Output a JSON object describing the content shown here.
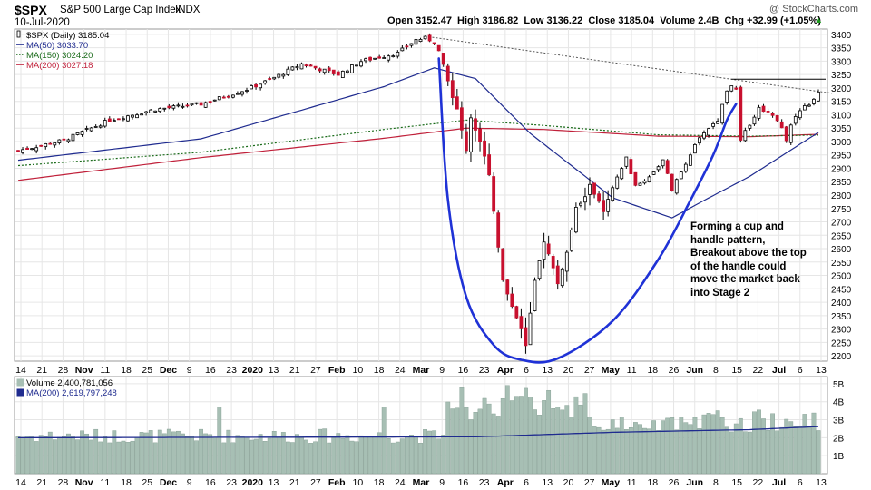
{
  "header": {
    "symbol": "$SPX",
    "name": "S&P 500 Large Cap Index",
    "exchange": "INDX",
    "date": "10-Jul-2020",
    "watermark": "@ StockCharts.com",
    "ohlc_line": "Open 3152.47  High 3186.82  Low 3136.22  Close 3185.04  Volume 2.4B  Chg +32.99 (+1.05%)",
    "chg_arrow": "▲"
  },
  "legend": [
    {
      "label": "$SPX (Daily) 3185.04",
      "color": "#000000",
      "style": "candle"
    },
    {
      "label": "MA(50) 3033.70",
      "color": "#1f2b8f",
      "style": "solid"
    },
    {
      "label": "MA(150) 3024.20",
      "color": "#1a6b1a",
      "style": "dotted"
    },
    {
      "label": "MA(200) 3027.18",
      "color": "#c0203a",
      "style": "solid"
    }
  ],
  "volume_legend": [
    {
      "label": "Volume 2,400,781,056",
      "color": "#a7bfb4"
    },
    {
      "label": "MA(200) 2,619,797,248",
      "color": "#1f2b8f"
    }
  ],
  "annotation": {
    "lines": [
      "Forming a cup and",
      "handle pattern,",
      "Breakout above the top",
      "of the handle could",
      "move the market back",
      "into Stage 2"
    ]
  },
  "colors": {
    "up": "#ffffff",
    "down": "#c8102e",
    "cup": "#1f32d6",
    "volume": "#a7bfb4",
    "grid": "#e6e6e6"
  },
  "chart_data": {
    "type": "candlestick",
    "price_axis": {
      "ylim": [
        2180,
        3420
      ],
      "ticks": [
        2200,
        2250,
        2300,
        2350,
        2400,
        2450,
        2500,
        2550,
        2600,
        2650,
        2700,
        2750,
        2800,
        2850,
        2900,
        2950,
        3000,
        3050,
        3100,
        3150,
        3200,
        3250,
        3300,
        3350,
        3400
      ]
    },
    "volume_axis": {
      "ylim": [
        0,
        5400000000
      ],
      "ticks": [
        {
          "v": 1000000000,
          "label": "1B"
        },
        {
          "v": 2000000000,
          "label": "2B"
        },
        {
          "v": 3000000000,
          "label": "3B"
        },
        {
          "v": 4000000000,
          "label": "4B"
        },
        {
          "v": 5000000000,
          "label": "5B"
        }
      ]
    },
    "x_labels": [
      {
        "label": "14",
        "bold": false
      },
      {
        "label": "21",
        "bold": false
      },
      {
        "label": "28",
        "bold": false
      },
      {
        "label": "Nov",
        "bold": true
      },
      {
        "label": "11",
        "bold": false
      },
      {
        "label": "18",
        "bold": false
      },
      {
        "label": "25",
        "bold": false
      },
      {
        "label": "Dec",
        "bold": true
      },
      {
        "label": "9",
        "bold": false
      },
      {
        "label": "16",
        "bold": false
      },
      {
        "label": "23",
        "bold": false
      },
      {
        "label": "2020",
        "bold": true
      },
      {
        "label": "13",
        "bold": false
      },
      {
        "label": "21",
        "bold": false
      },
      {
        "label": "27",
        "bold": false
      },
      {
        "label": "Feb",
        "bold": true
      },
      {
        "label": "10",
        "bold": false
      },
      {
        "label": "18",
        "bold": false
      },
      {
        "label": "24",
        "bold": false
      },
      {
        "label": "Mar",
        "bold": true
      },
      {
        "label": "9",
        "bold": false
      },
      {
        "label": "16",
        "bold": false
      },
      {
        "label": "23",
        "bold": false
      },
      {
        "label": "Apr",
        "bold": true
      },
      {
        "label": "6",
        "bold": false
      },
      {
        "label": "13",
        "bold": false
      },
      {
        "label": "20",
        "bold": false
      },
      {
        "label": "27",
        "bold": false
      },
      {
        "label": "May",
        "bold": true
      },
      {
        "label": "11",
        "bold": false
      },
      {
        "label": "18",
        "bold": false
      },
      {
        "label": "26",
        "bold": false
      },
      {
        "label": "Jun",
        "bold": true
      },
      {
        "label": "8",
        "bold": false
      },
      {
        "label": "15",
        "bold": false
      },
      {
        "label": "22",
        "bold": false
      },
      {
        "label": "Jul",
        "bold": true
      },
      {
        "label": "6",
        "bold": false
      },
      {
        "label": "13",
        "bold": false
      }
    ],
    "price_anchors": [
      {
        "d": 0,
        "c": 2966
      },
      {
        "d": 10,
        "c": 3005
      },
      {
        "d": 20,
        "c": 3080
      },
      {
        "d": 30,
        "c": 3120
      },
      {
        "d": 40,
        "c": 3140
      },
      {
        "d": 50,
        "c": 3195
      },
      {
        "d": 55,
        "c": 3230
      },
      {
        "d": 62,
        "c": 3290
      },
      {
        "d": 70,
        "c": 3250
      },
      {
        "d": 75,
        "c": 3300
      },
      {
        "d": 83,
        "c": 3330
      },
      {
        "d": 87,
        "c": 3380
      },
      {
        "d": 89,
        "c": 3386
      },
      {
        "d": 91,
        "c": 3373
      },
      {
        "d": 92,
        "c": 3337
      },
      {
        "d": 94,
        "c": 3225
      },
      {
        "d": 96,
        "c": 3116
      },
      {
        "d": 98,
        "c": 2970
      },
      {
        "d": 99,
        "c": 3090
      },
      {
        "d": 101,
        "c": 3000
      },
      {
        "d": 103,
        "c": 2882
      },
      {
        "d": 104,
        "c": 2741
      },
      {
        "d": 106,
        "c": 2480
      },
      {
        "d": 108,
        "c": 2386
      },
      {
        "d": 110,
        "c": 2305
      },
      {
        "d": 111,
        "c": 2237
      },
      {
        "d": 113,
        "c": 2475
      },
      {
        "d": 115,
        "c": 2630
      },
      {
        "d": 117,
        "c": 2526
      },
      {
        "d": 118,
        "c": 2470
      },
      {
        "d": 120,
        "c": 2585
      },
      {
        "d": 122,
        "c": 2750
      },
      {
        "d": 124,
        "c": 2790
      },
      {
        "d": 125,
        "c": 2843
      },
      {
        "d": 128,
        "c": 2736
      },
      {
        "d": 130,
        "c": 2823
      },
      {
        "d": 133,
        "c": 2939
      },
      {
        "d": 135,
        "c": 2830
      },
      {
        "d": 138,
        "c": 2870
      },
      {
        "d": 141,
        "c": 2929
      },
      {
        "d": 143,
        "c": 2820
      },
      {
        "d": 144,
        "c": 2852
      },
      {
        "d": 147,
        "c": 2955
      },
      {
        "d": 150,
        "c": 3036
      },
      {
        "d": 153,
        "c": 3080
      },
      {
        "d": 155,
        "c": 3193
      },
      {
        "d": 156,
        "c": 3213
      },
      {
        "d": 157,
        "c": 3190
      },
      {
        "d": 158,
        "c": 3002
      },
      {
        "d": 160,
        "c": 3067
      },
      {
        "d": 162,
        "c": 3124
      },
      {
        "d": 164,
        "c": 3113
      },
      {
        "d": 166,
        "c": 3084
      },
      {
        "d": 168,
        "c": 3010
      },
      {
        "d": 170,
        "c": 3100
      },
      {
        "d": 172,
        "c": 3130
      },
      {
        "d": 174,
        "c": 3152
      },
      {
        "d": 175,
        "c": 3185
      }
    ],
    "ma50_anchors": [
      {
        "d": 0,
        "v": 2930
      },
      {
        "d": 40,
        "v": 3010
      },
      {
        "d": 80,
        "v": 3205
      },
      {
        "d": 91,
        "v": 3275
      },
      {
        "d": 100,
        "v": 3235
      },
      {
        "d": 112,
        "v": 3030
      },
      {
        "d": 130,
        "v": 2790
      },
      {
        "d": 143,
        "v": 2715
      },
      {
        "d": 150,
        "v": 2780
      },
      {
        "d": 160,
        "v": 2870
      },
      {
        "d": 175,
        "v": 3034
      }
    ],
    "ma150_anchors": [
      {
        "d": 0,
        "v": 2910
      },
      {
        "d": 40,
        "v": 2960
      },
      {
        "d": 80,
        "v": 3045
      },
      {
        "d": 98,
        "v": 3080
      },
      {
        "d": 115,
        "v": 3060
      },
      {
        "d": 140,
        "v": 3025
      },
      {
        "d": 160,
        "v": 3020
      },
      {
        "d": 175,
        "v": 3024
      }
    ],
    "ma200_anchors": [
      {
        "d": 0,
        "v": 2855
      },
      {
        "d": 40,
        "v": 2940
      },
      {
        "d": 80,
        "v": 3012
      },
      {
        "d": 98,
        "v": 3050
      },
      {
        "d": 115,
        "v": 3045
      },
      {
        "d": 140,
        "v": 3020
      },
      {
        "d": 160,
        "v": 3018
      },
      {
        "d": 175,
        "v": 3027
      }
    ],
    "volume_ma200_anchors": [
      {
        "d": 0,
        "v": 2000000000
      },
      {
        "d": 100,
        "v": 2050000000
      },
      {
        "d": 130,
        "v": 2300000000
      },
      {
        "d": 160,
        "v": 2450000000
      },
      {
        "d": 175,
        "v": 2620000000
      }
    ],
    "trendline": {
      "from": {
        "d": 89,
        "v": 3393
      },
      "to": {
        "d": 178,
        "v": 3180
      },
      "style": "dotted"
    },
    "handle_top": {
      "from": {
        "d": 156,
        "v": 3233
      },
      "to": {
        "d": 178,
        "v": 3233
      }
    },
    "cup_curve": [
      {
        "d": 92,
        "v": 3310
      },
      {
        "d": 94,
        "v": 2780
      },
      {
        "d": 98,
        "v": 2420
      },
      {
        "d": 104,
        "v": 2240
      },
      {
        "d": 110,
        "v": 2185
      },
      {
        "d": 118,
        "v": 2190
      },
      {
        "d": 130,
        "v": 2330
      },
      {
        "d": 140,
        "v": 2560
      },
      {
        "d": 147,
        "v": 2780
      },
      {
        "d": 152,
        "v": 2950
      },
      {
        "d": 155,
        "v": 3080
      },
      {
        "d": 157,
        "v": 3140
      }
    ]
  }
}
